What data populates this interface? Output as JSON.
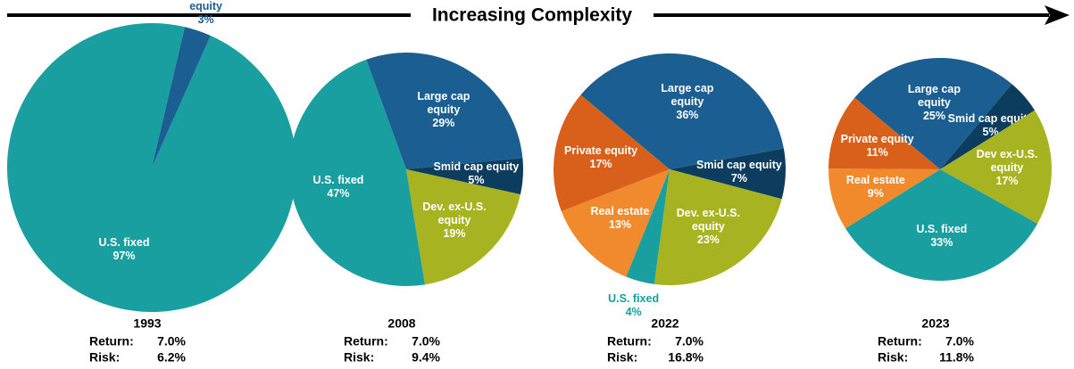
{
  "header": "Increasing Complexity",
  "chart_data": [
    {
      "type": "pie",
      "title": "1993",
      "categories": [
        "U.S. fixed",
        "Large cap equity"
      ],
      "values": [
        97,
        3
      ],
      "value_labels": [
        "97%",
        "3%"
      ],
      "colors": [
        "#1a9fa0",
        "#1b5e91"
      ],
      "stats": [
        {
          "label": "Return:",
          "value": "7.0%"
        },
        {
          "label": "Risk:",
          "value": "6.2%"
        }
      ]
    },
    {
      "type": "pie",
      "title": "2008",
      "categories": [
        "Large cap equity",
        "Smid cap equity",
        "Dev. ex-U.S. equity",
        "U.S. fixed"
      ],
      "values": [
        29,
        5,
        19,
        47
      ],
      "value_labels": [
        "29%",
        "5%",
        "19%",
        "47%"
      ],
      "colors": [
        "#1b5e91",
        "#0d3d5e",
        "#a7b320",
        "#1a9fa0"
      ],
      "stats": [
        {
          "label": "Return:",
          "value": "7.0%"
        },
        {
          "label": "Risk:",
          "value": "9.4%"
        }
      ]
    },
    {
      "type": "pie",
      "title": "2022",
      "categories": [
        "Large cap equity",
        "Smid cap equity",
        "Dev. ex-U.S. equity",
        "U.S. fixed",
        "Real estate",
        "Private equity"
      ],
      "values": [
        36,
        7,
        23,
        4,
        13,
        17
      ],
      "value_labels": [
        "36%",
        "7%",
        "23%",
        "4%",
        "13%",
        "17%"
      ],
      "colors": [
        "#1b5e91",
        "#0d3d5e",
        "#a7b320",
        "#1a9fa0",
        "#f08a2c",
        "#d9601a"
      ],
      "stats": [
        {
          "label": "Return:",
          "value": "7.0%"
        },
        {
          "label": "Risk:",
          "value": "16.8%"
        }
      ]
    },
    {
      "type": "pie",
      "title": "2023",
      "categories": [
        "Large cap equity",
        "Smid cap equity",
        "Dev ex-U.S. equity",
        "U.S. fixed",
        "Real estate",
        "Private equity"
      ],
      "values": [
        25,
        5,
        17,
        33,
        9,
        11
      ],
      "value_labels": [
        "25%",
        "5%",
        "17%",
        "33%",
        "9%",
        "11%"
      ],
      "colors": [
        "#1b5e91",
        "#0d3d5e",
        "#a7b320",
        "#1a9fa0",
        "#f08a2c",
        "#d9601a"
      ],
      "stats": [
        {
          "label": "Return:",
          "value": "7.0%"
        },
        {
          "label": "Risk:",
          "value": "11.8%"
        }
      ]
    }
  ]
}
